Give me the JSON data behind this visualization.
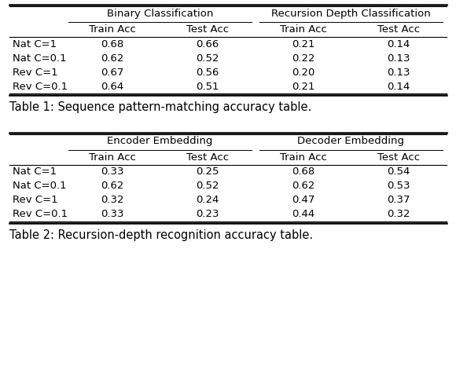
{
  "table1": {
    "caption": "Table 1: Sequence pattern-matching accuracy table.",
    "col_groups": [
      "Binary Classification",
      "Recursion Depth Classification"
    ],
    "col_subheaders": [
      "Train Acc",
      "Test Acc",
      "Train Acc",
      "Test Acc"
    ],
    "row_labels": [
      "Nat C=1",
      "Nat C=0.1",
      "Rev C=1",
      "Rev C=0.1"
    ],
    "data": [
      [
        0.68,
        0.66,
        0.21,
        0.14
      ],
      [
        0.62,
        0.52,
        0.22,
        0.13
      ],
      [
        0.67,
        0.56,
        0.2,
        0.13
      ],
      [
        0.64,
        0.51,
        0.21,
        0.14
      ]
    ]
  },
  "table2": {
    "caption": "Table 2: Recursion-depth recognition accuracy table.",
    "col_groups": [
      "Encoder Embedding",
      "Decoder Embedding"
    ],
    "col_subheaders": [
      "Train Acc",
      "Test Acc",
      "Train Acc",
      "Test Acc"
    ],
    "row_labels": [
      "Nat C=1",
      "Nat C=0.1",
      "Rev C=1",
      "Rev C=0.1"
    ],
    "data": [
      [
        0.33,
        0.25,
        0.68,
        0.54
      ],
      [
        0.62,
        0.52,
        0.62,
        0.53
      ],
      [
        0.32,
        0.24,
        0.47,
        0.37
      ],
      [
        0.33,
        0.23,
        0.44,
        0.32
      ]
    ]
  },
  "bg_color": "#ffffff",
  "text_color": "#000000",
  "caption_fontsize": 10.5,
  "header_fontsize": 9.5,
  "cell_fontsize": 9.5,
  "row_label_fontsize": 9.5
}
